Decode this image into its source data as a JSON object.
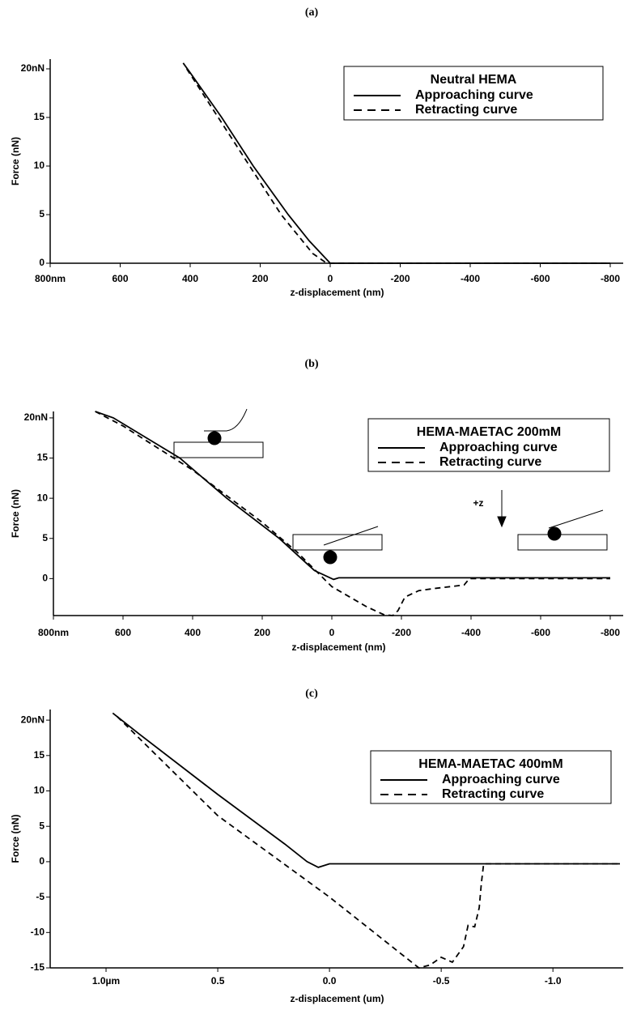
{
  "chart_data": [
    {
      "type": "line",
      "title": "(a)",
      "legend_title": "Neutral HEMA",
      "xlabel": "z-displacement (nm)",
      "ylabel": "Force (nN)",
      "xlim": [
        800,
        -800
      ],
      "ylim": [
        0,
        21
      ],
      "xticks": [
        {
          "value": 800,
          "label": "800nm"
        },
        600,
        400,
        200,
        0,
        -200,
        -400,
        -600,
        -800
      ],
      "yticks": [
        0,
        5,
        10,
        15,
        {
          "value": 20,
          "label": "20nN"
        }
      ],
      "series": [
        {
          "name": "Approaching curve",
          "color": "#000000",
          "dashed": false,
          "x": [
            420,
            400,
            310,
            220,
            120,
            60,
            0,
            -800
          ],
          "values": [
            20.6,
            19.6,
            15,
            10,
            5,
            2.3,
            0,
            0
          ]
        },
        {
          "name": "Retracting curve",
          "color": "#000000",
          "dashed": true,
          "x": [
            410,
            320,
            230,
            140,
            50,
            10,
            -800
          ],
          "values": [
            20,
            15,
            10,
            5,
            1,
            0,
            0
          ]
        }
      ]
    },
    {
      "type": "line",
      "title": "(b)",
      "legend_title": "HEMA-MAETAC 200mM",
      "xlabel": "z-displacement (nm)",
      "ylabel": "Force (nN)",
      "annotations": [
        "+z"
      ],
      "xlim": [
        800,
        -800
      ],
      "ylim": [
        -4.6,
        20.8
      ],
      "xticks": [
        {
          "value": 800,
          "label": "800nm"
        },
        600,
        400,
        200,
        0,
        -200,
        -400,
        -600,
        -800
      ],
      "yticks": [
        0,
        5,
        10,
        15,
        {
          "value": 20,
          "label": "20nN"
        }
      ],
      "series": [
        {
          "name": "Approaching curve",
          "color": "#000000",
          "dashed": false,
          "x": [
            680,
            628,
            437,
            302,
            151,
            50,
            0,
            -5,
            -20,
            -800
          ],
          "values": [
            20.8,
            20,
            15,
            10,
            5,
            1,
            0,
            -0.1,
            0.1,
            0.1
          ]
        },
        {
          "name": "Retracting curve",
          "color": "#000000",
          "dashed": true,
          "x": [
            680,
            600,
            400,
            200,
            100,
            0,
            -100,
            -150,
            -175,
            -190,
            -210,
            -250,
            -300,
            -380,
            -395,
            -800
          ],
          "values": [
            20.8,
            19,
            13.5,
            7,
            3.3,
            -1,
            -3.5,
            -4.5,
            -4.6,
            -4,
            -2.3,
            -1.5,
            -1.2,
            -0.8,
            0,
            0
          ]
        }
      ]
    },
    {
      "type": "line",
      "title": "(c)",
      "legend_title": "HEMA-MAETAC 400mM",
      "xlabel": "z-displacement (um)",
      "ylabel": "Force (nN)",
      "xlim": [
        1.25,
        -1.3
      ],
      "ylim": [
        -15,
        21.5
      ],
      "xticks": [
        {
          "value": 1,
          "label": "1.0µm"
        },
        0.5,
        {
          "value": 0,
          "label": "0.0"
        },
        -0.5,
        {
          "value": -1,
          "label": "-1.0"
        }
      ],
      "yticks": [
        -15,
        -10,
        -5,
        0,
        5,
        10,
        15,
        {
          "value": 20,
          "label": "20nN"
        }
      ],
      "series": [
        {
          "name": "Approaching curve",
          "color": "#000000",
          "dashed": false,
          "x": [
            0.97,
            0.85,
            0.5,
            0.2,
            0.1,
            0.05,
            0,
            -1.3
          ],
          "values": [
            21,
            18,
            9.5,
            2.5,
            0,
            -0.8,
            -0.3,
            -0.3
          ]
        },
        {
          "name": "Retracting curve",
          "color": "#000000",
          "dashed": true,
          "x": [
            0.95,
            0.5,
            0,
            -0.2,
            -0.4,
            -0.45,
            -0.5,
            -0.55,
            -0.6,
            -0.62,
            -0.65,
            -0.67,
            -0.68,
            -0.69,
            -1.3
          ],
          "values": [
            20.5,
            6.5,
            -5,
            -10,
            -15,
            -14.6,
            -13.5,
            -14.2,
            -12,
            -9,
            -9.2,
            -6.5,
            -3,
            -0.3,
            -0.3
          ]
        }
      ]
    }
  ]
}
